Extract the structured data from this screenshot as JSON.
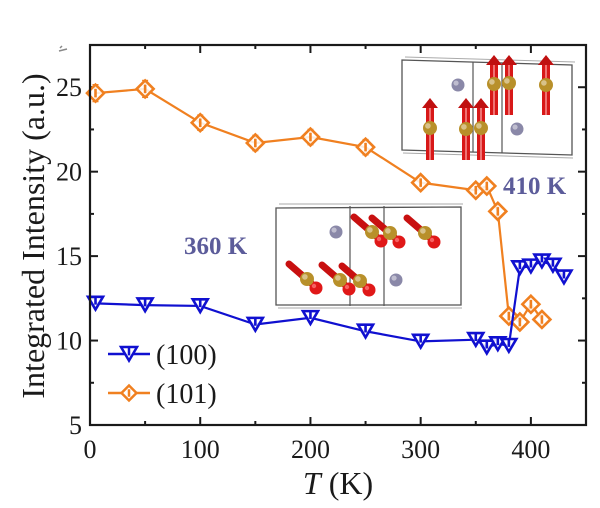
{
  "chart_data": {
    "type": "line",
    "title": "",
    "xlabel_italic": "T",
    "xlabel_unit": " (K)",
    "ylabel": "Integrated Intensity (a.u.)",
    "xlim": [
      0,
      450
    ],
    "ylim": [
      5,
      27.5
    ],
    "xticks": [
      0,
      100,
      200,
      300,
      400
    ],
    "xtick_labels": [
      "0",
      "100",
      "200",
      "300",
      "400"
    ],
    "xminor_ticks": [
      50,
      150,
      250,
      350
    ],
    "yticks": [
      5,
      10,
      15,
      20,
      25
    ],
    "ytick_labels": [
      "5",
      "10",
      "15",
      "20",
      "25"
    ],
    "yminor_ticks": [
      7.5,
      12.5,
      17.5,
      22.5
    ],
    "grid": false,
    "legend_position": "bottom-left",
    "series": [
      {
        "name": "(100)",
        "marker": "triangle-down",
        "color": "#1010d0",
        "x": [
          5,
          50,
          100,
          150,
          200,
          250,
          300,
          350,
          360,
          370,
          380,
          390,
          400,
          410,
          420,
          430
        ],
        "y": [
          12.2,
          12.1,
          12.05,
          10.95,
          11.35,
          10.55,
          9.95,
          10.05,
          9.6,
          9.8,
          9.7,
          14.3,
          14.4,
          14.7,
          14.45,
          13.75
        ]
      },
      {
        "name": "(101)",
        "marker": "diamond",
        "color": "#f08020",
        "x": [
          5,
          50,
          100,
          150,
          200,
          250,
          300,
          350,
          360,
          370,
          380,
          390,
          400,
          410
        ],
        "y": [
          24.65,
          24.9,
          22.9,
          21.7,
          22.05,
          21.45,
          19.35,
          18.9,
          19.15,
          17.65,
          11.45,
          11.1,
          12.15,
          11.25
        ],
        "error": [
          0.5,
          0.5,
          0.45,
          0.45,
          0.45,
          0.45,
          0.4,
          0.4,
          0.4,
          0.35,
          0.3,
          0.3,
          0.3,
          0.3
        ]
      }
    ],
    "annotations": [
      {
        "text": "360 K",
        "color": "#5c5c9a",
        "describes": "inset-360K",
        "spin_direction": "tilted"
      },
      {
        "text": "410 K",
        "color": "#5c5c9a",
        "describes": "inset-410K",
        "spin_direction": "up"
      }
    ]
  },
  "colors": {
    "axis": "#1a1a1a",
    "inset_frame": "#555555",
    "atom_gold": "#b8902a",
    "atom_gray": "#8a88a8",
    "spin_red": "#d81818"
  }
}
